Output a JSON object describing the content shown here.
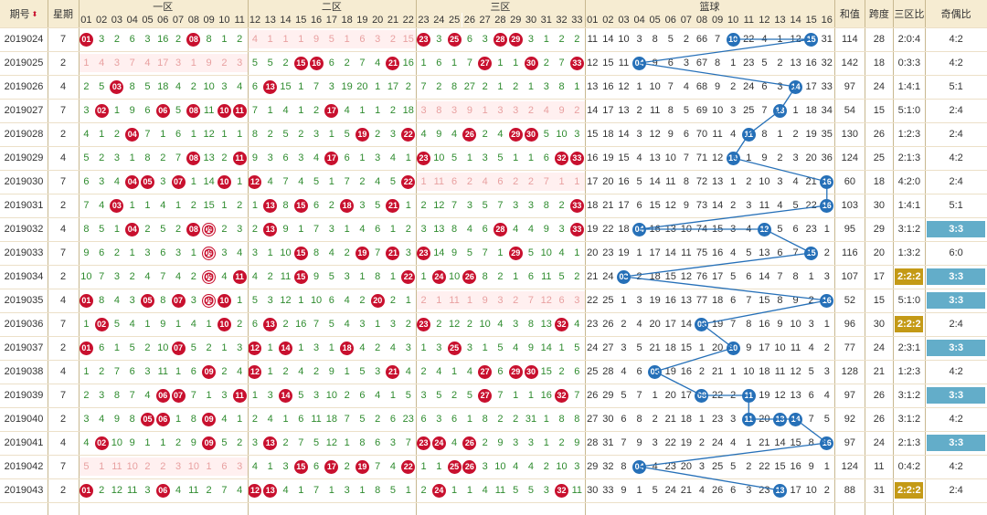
{
  "header": {
    "period_label": "期号",
    "weekday_label": "星期",
    "zone1_label": "一区",
    "zone2_label": "二区",
    "zone3_label": "三区",
    "blue_label": "篮球",
    "sum_label": "和值",
    "span_label": "跨度",
    "ratio_label": "三区比",
    "oddeven_label": "奇偶比",
    "sort_icon": "sort-updown-icon"
  },
  "colors": {
    "red": "#c8102e",
    "blue": "#2670b8",
    "gold": "#c49a16",
    "teal": "#63adc9",
    "header_bg": "#f6ecd2"
  },
  "red_numbers": [
    "01",
    "02",
    "03",
    "04",
    "05",
    "06",
    "07",
    "08",
    "09",
    "10",
    "11",
    "12",
    "13",
    "14",
    "15",
    "16",
    "17",
    "18",
    "19",
    "20",
    "21",
    "22",
    "23",
    "24",
    "25",
    "26",
    "27",
    "28",
    "29",
    "30",
    "31",
    "32",
    "33"
  ],
  "blue_numbers": [
    "01",
    "02",
    "03",
    "04",
    "05",
    "06",
    "07",
    "08",
    "09",
    "10",
    "11",
    "12",
    "13",
    "14",
    "15",
    "16"
  ],
  "rows": [
    {
      "period": "2019024",
      "week": "7",
      "sum": "114",
      "span": "28",
      "ratio": "2:0:4",
      "oe": "4:2",
      "red": [
        "01",
        "3",
        "2",
        "6",
        "3",
        "16",
        "2",
        "08",
        "8",
        "1",
        "2",
        "4",
        "1",
        "1",
        "1",
        "9",
        "5",
        "1",
        "6",
        "3",
        "2",
        "15",
        "23",
        "3",
        "25",
        "6",
        "3",
        "28",
        "29",
        "3",
        "1",
        "2",
        "2"
      ],
      "blue": [
        "11",
        "14",
        "10",
        "3",
        "8",
        "5",
        "2",
        "66",
        "7",
        "10",
        "22",
        "4",
        "1",
        "12",
        "15",
        "31"
      ]
    },
    {
      "period": "2019025",
      "week": "2",
      "sum": "142",
      "span": "18",
      "ratio": "0:3:3",
      "oe": "4:2",
      "red": [
        "1",
        "4",
        "3",
        "7",
        "4",
        "17",
        "3",
        "1",
        "9",
        "2",
        "3",
        "5",
        "5",
        "2",
        "15",
        "16",
        "6",
        "2",
        "7",
        "4",
        "21",
        "16",
        "1",
        "6",
        "1",
        "7",
        "27",
        "1",
        "1",
        "30",
        "2",
        "7",
        "33"
      ],
      "blue": [
        "12",
        "15",
        "11",
        "04",
        "9",
        "6",
        "3",
        "67",
        "8",
        "1",
        "23",
        "5",
        "2",
        "13",
        "16",
        "32"
      ]
    },
    {
      "period": "2019026",
      "week": "4",
      "sum": "97",
      "span": "24",
      "ratio": "1:4:1",
      "oe": "5:1",
      "red": [
        "2",
        "5",
        "03",
        "8",
        "5",
        "18",
        "4",
        "2",
        "10",
        "3",
        "4",
        "6",
        "13",
        "15",
        "1",
        "7",
        "3",
        "19",
        "20",
        "1",
        "17",
        "2",
        "7",
        "2",
        "8",
        "27",
        "2",
        "1",
        "2",
        "1",
        "3",
        "8",
        "1"
      ],
      "blue": [
        "13",
        "16",
        "12",
        "1",
        "10",
        "7",
        "4",
        "68",
        "9",
        "2",
        "24",
        "6",
        "3",
        "14",
        "17",
        "33"
      ]
    },
    {
      "period": "2019027",
      "week": "7",
      "sum": "54",
      "span": "15",
      "ratio": "5:1:0",
      "oe": "2:4",
      "red": [
        "3",
        "02",
        "1",
        "9",
        "6",
        "06",
        "5",
        "08",
        "11",
        "10",
        "11",
        "7",
        "1",
        "4",
        "1",
        "2",
        "17",
        "4",
        "1",
        "1",
        "2",
        "18",
        "3",
        "8",
        "3",
        "9",
        "1",
        "3",
        "3",
        "2",
        "4",
        "9",
        "2"
      ],
      "blue": [
        "14",
        "17",
        "13",
        "2",
        "11",
        "8",
        "5",
        "69",
        "10",
        "3",
        "25",
        "7",
        "13",
        "1",
        "18",
        "34"
      ]
    },
    {
      "period": "2019028",
      "week": "2",
      "sum": "130",
      "span": "26",
      "ratio": "1:2:3",
      "oe": "2:4",
      "red": [
        "4",
        "1",
        "2",
        "04",
        "7",
        "1",
        "6",
        "1",
        "12",
        "1",
        "1",
        "8",
        "2",
        "5",
        "2",
        "3",
        "1",
        "5",
        "19",
        "2",
        "3",
        "22",
        "4",
        "9",
        "4",
        "26",
        "2",
        "4",
        "29",
        "30",
        "5",
        "10",
        "3"
      ],
      "blue": [
        "15",
        "18",
        "14",
        "3",
        "12",
        "9",
        "6",
        "70",
        "11",
        "4",
        "11",
        "8",
        "1",
        "2",
        "19",
        "35"
      ]
    },
    {
      "period": "2019029",
      "week": "4",
      "sum": "124",
      "span": "25",
      "ratio": "2:1:3",
      "oe": "4:2",
      "red": [
        "5",
        "2",
        "3",
        "1",
        "8",
        "2",
        "7",
        "08",
        "13",
        "2",
        "11",
        "9",
        "3",
        "6",
        "3",
        "4",
        "17",
        "6",
        "1",
        "3",
        "4",
        "1",
        "23",
        "10",
        "5",
        "1",
        "3",
        "5",
        "1",
        "1",
        "6",
        "32",
        "33"
      ],
      "blue": [
        "16",
        "19",
        "15",
        "4",
        "13",
        "10",
        "7",
        "71",
        "12",
        "10",
        "1",
        "9",
        "2",
        "3",
        "20",
        "36"
      ]
    },
    {
      "period": "2019030",
      "week": "7",
      "sum": "60",
      "span": "18",
      "ratio": "4:2:0",
      "oe": "2:4",
      "red": [
        "6",
        "3",
        "4",
        "04",
        "05",
        "3",
        "07",
        "1",
        "14",
        "10",
        "1",
        "12",
        "4",
        "7",
        "4",
        "5",
        "1",
        "7",
        "2",
        "4",
        "5",
        "22",
        "1",
        "11",
        "6",
        "2",
        "4",
        "6",
        "2",
        "2",
        "7",
        "1",
        "1"
      ],
      "blue": [
        "17",
        "20",
        "16",
        "5",
        "14",
        "11",
        "8",
        "72",
        "13",
        "1",
        "2",
        "10",
        "3",
        "4",
        "21",
        "16"
      ]
    },
    {
      "period": "2019031",
      "week": "2",
      "sum": "103",
      "span": "30",
      "ratio": "1:4:1",
      "oe": "5:1",
      "red": [
        "7",
        "4",
        "03",
        "1",
        "1",
        "4",
        "1",
        "2",
        "15",
        "1",
        "2",
        "1",
        "13",
        "8",
        "15",
        "6",
        "2",
        "18",
        "3",
        "5",
        "21",
        "1",
        "2",
        "12",
        "7",
        "3",
        "5",
        "7",
        "3",
        "3",
        "8",
        "2",
        "33"
      ],
      "blue": [
        "18",
        "21",
        "17",
        "6",
        "15",
        "12",
        "9",
        "73",
        "14",
        "2",
        "3",
        "11",
        "4",
        "5",
        "22",
        "16"
      ]
    },
    {
      "period": "2019032",
      "week": "4",
      "sum": "95",
      "span": "29",
      "ratio": "3:1:2",
      "oe": "3:3",
      "red": [
        "8",
        "5",
        "1",
        "04",
        "2",
        "5",
        "2",
        "08",
        "09",
        "2",
        "3",
        "2",
        "13",
        "9",
        "1",
        "7",
        "3",
        "1",
        "4",
        "6",
        "1",
        "2",
        "3",
        "13",
        "8",
        "4",
        "6",
        "28",
        "4",
        "4",
        "9",
        "3",
        "33"
      ],
      "blue": [
        "19",
        "22",
        "18",
        "04",
        "16",
        "13",
        "10",
        "74",
        "15",
        "3",
        "4",
        "12",
        "5",
        "6",
        "23",
        "1"
      ]
    },
    {
      "period": "2019033",
      "week": "7",
      "sum": "116",
      "span": "20",
      "ratio": "1:3:2",
      "oe": "6:0",
      "red": [
        "9",
        "6",
        "2",
        "1",
        "3",
        "6",
        "3",
        "1",
        "09",
        "3",
        "4",
        "3",
        "1",
        "10",
        "15",
        "8",
        "4",
        "2",
        "19",
        "7",
        "21",
        "3",
        "23",
        "14",
        "9",
        "5",
        "7",
        "1",
        "29",
        "5",
        "10",
        "4",
        "1"
      ],
      "blue": [
        "20",
        "23",
        "19",
        "1",
        "17",
        "14",
        "11",
        "75",
        "16",
        "4",
        "5",
        "13",
        "6",
        "7",
        "15",
        "2"
      ]
    },
    {
      "period": "2019034",
      "week": "2",
      "sum": "107",
      "span": "17",
      "ratio": "2:2:2",
      "oe": "3:3",
      "red": [
        "10",
        "7",
        "3",
        "2",
        "4",
        "7",
        "4",
        "2",
        "09",
        "4",
        "11",
        "4",
        "2",
        "11",
        "15",
        "9",
        "5",
        "3",
        "1",
        "8",
        "1",
        "22",
        "1",
        "24",
        "10",
        "26",
        "8",
        "2",
        "1",
        "6",
        "11",
        "5",
        "2"
      ],
      "blue": [
        "21",
        "24",
        "03",
        "2",
        "18",
        "15",
        "12",
        "76",
        "17",
        "5",
        "6",
        "14",
        "7",
        "8",
        "1",
        "3"
      ]
    },
    {
      "period": "2019035",
      "week": "4",
      "sum": "52",
      "span": "15",
      "ratio": "5:1:0",
      "oe": "3:3",
      "red": [
        "01",
        "8",
        "4",
        "3",
        "05",
        "8",
        "07",
        "3",
        "09",
        "10",
        "1",
        "5",
        "3",
        "12",
        "1",
        "10",
        "6",
        "4",
        "2",
        "20",
        "2",
        "1",
        "2",
        "1",
        "11",
        "1",
        "9",
        "3",
        "2",
        "7",
        "12",
        "6",
        "3"
      ],
      "blue": [
        "22",
        "25",
        "1",
        "3",
        "19",
        "16",
        "13",
        "77",
        "18",
        "6",
        "7",
        "15",
        "8",
        "9",
        "2",
        "16"
      ]
    },
    {
      "period": "2019036",
      "week": "7",
      "sum": "96",
      "span": "30",
      "ratio": "2:2:2",
      "oe": "2:4",
      "red": [
        "1",
        "02",
        "5",
        "4",
        "1",
        "9",
        "1",
        "4",
        "1",
        "10",
        "2",
        "6",
        "13",
        "2",
        "16",
        "7",
        "5",
        "4",
        "3",
        "1",
        "3",
        "2",
        "23",
        "2",
        "12",
        "2",
        "10",
        "4",
        "3",
        "8",
        "13",
        "32",
        "4"
      ],
      "blue": [
        "23",
        "26",
        "2",
        "4",
        "20",
        "17",
        "14",
        "08",
        "19",
        "7",
        "8",
        "16",
        "9",
        "10",
        "3",
        "1"
      ]
    },
    {
      "period": "2019037",
      "week": "2",
      "sum": "77",
      "span": "24",
      "ratio": "2:3:1",
      "oe": "3:3",
      "red": [
        "01",
        "6",
        "1",
        "5",
        "2",
        "10",
        "07",
        "5",
        "2",
        "1",
        "3",
        "12",
        "1",
        "14",
        "1",
        "3",
        "1",
        "18",
        "4",
        "2",
        "4",
        "3",
        "1",
        "3",
        "25",
        "3",
        "1",
        "5",
        "4",
        "9",
        "14",
        "1",
        "5"
      ],
      "blue": [
        "24",
        "27",
        "3",
        "5",
        "21",
        "18",
        "15",
        "1",
        "20",
        "10",
        "9",
        "17",
        "10",
        "11",
        "4",
        "2"
      ]
    },
    {
      "period": "2019038",
      "week": "4",
      "sum": "128",
      "span": "21",
      "ratio": "1:2:3",
      "oe": "4:2",
      "red": [
        "1",
        "2",
        "7",
        "6",
        "3",
        "11",
        "1",
        "6",
        "09",
        "2",
        "4",
        "12",
        "1",
        "2",
        "4",
        "2",
        "9",
        "1",
        "5",
        "3",
        "21",
        "4",
        "2",
        "4",
        "1",
        "4",
        "27",
        "6",
        "29",
        "30",
        "15",
        "2",
        "6"
      ],
      "blue": [
        "25",
        "28",
        "4",
        "6",
        "05",
        "19",
        "16",
        "2",
        "21",
        "1",
        "10",
        "18",
        "11",
        "12",
        "5",
        "3"
      ]
    },
    {
      "period": "2019039",
      "week": "7",
      "sum": "97",
      "span": "26",
      "ratio": "3:1:2",
      "oe": "3:3",
      "red": [
        "2",
        "3",
        "8",
        "7",
        "4",
        "06",
        "07",
        "7",
        "1",
        "3",
        "11",
        "1",
        "3",
        "14",
        "5",
        "3",
        "10",
        "2",
        "6",
        "4",
        "1",
        "5",
        "3",
        "5",
        "2",
        "5",
        "27",
        "7",
        "1",
        "1",
        "16",
        "32",
        "7"
      ],
      "blue": [
        "26",
        "29",
        "5",
        "7",
        "1",
        "20",
        "17",
        "08",
        "22",
        "2",
        "11",
        "19",
        "12",
        "13",
        "6",
        "4"
      ]
    },
    {
      "period": "2019040",
      "week": "2",
      "sum": "92",
      "span": "26",
      "ratio": "3:1:2",
      "oe": "4:2",
      "red": [
        "3",
        "4",
        "9",
        "8",
        "05",
        "06",
        "1",
        "8",
        "09",
        "4",
        "1",
        "2",
        "4",
        "1",
        "6",
        "11",
        "18",
        "7",
        "5",
        "2",
        "6",
        "23",
        "6",
        "3",
        "6",
        "1",
        "8",
        "2",
        "2",
        "31",
        "1",
        "8",
        "8"
      ],
      "blue": [
        "27",
        "30",
        "6",
        "8",
        "2",
        "21",
        "18",
        "1",
        "23",
        "3",
        "11",
        "20",
        "13",
        "14",
        "7",
        "5"
      ]
    },
    {
      "period": "2019041",
      "week": "4",
      "sum": "97",
      "span": "24",
      "ratio": "2:1:3",
      "oe": "3:3",
      "red": [
        "4",
        "02",
        "10",
        "9",
        "1",
        "1",
        "2",
        "9",
        "09",
        "5",
        "2",
        "3",
        "13",
        "2",
        "7",
        "5",
        "12",
        "1",
        "8",
        "6",
        "3",
        "7",
        "23",
        "24",
        "4",
        "26",
        "2",
        "9",
        "3",
        "3",
        "1",
        "2",
        "9"
      ],
      "blue": [
        "28",
        "31",
        "7",
        "9",
        "3",
        "22",
        "19",
        "2",
        "24",
        "4",
        "1",
        "21",
        "14",
        "15",
        "8",
        "16"
      ]
    },
    {
      "period": "2019042",
      "week": "7",
      "sum": "124",
      "span": "11",
      "ratio": "0:4:2",
      "oe": "4:2",
      "red": [
        "5",
        "1",
        "11",
        "10",
        "2",
        "2",
        "3",
        "10",
        "1",
        "6",
        "3",
        "4",
        "1",
        "3",
        "15",
        "6",
        "17",
        "2",
        "19",
        "7",
        "4",
        "22",
        "1",
        "1",
        "25",
        "26",
        "3",
        "10",
        "4",
        "4",
        "2",
        "10",
        "3"
      ],
      "blue": [
        "29",
        "32",
        "8",
        "04",
        "4",
        "23",
        "20",
        "3",
        "25",
        "5",
        "2",
        "22",
        "15",
        "16",
        "9",
        "1"
      ]
    },
    {
      "period": "2019043",
      "week": "2",
      "sum": "88",
      "span": "31",
      "ratio": "2:2:2",
      "oe": "2:4",
      "red": [
        "01",
        "2",
        "12",
        "11",
        "3",
        "06",
        "4",
        "11",
        "2",
        "7",
        "4",
        "12",
        "13",
        "4",
        "1",
        "7",
        "1",
        "3",
        "1",
        "8",
        "5",
        "1",
        "2",
        "24",
        "1",
        "1",
        "4",
        "11",
        "5",
        "5",
        "3",
        "32",
        "11"
      ],
      "blue": [
        "30",
        "33",
        "9",
        "1",
        "5",
        "24",
        "21",
        "4",
        "26",
        "6",
        "3",
        "23",
        "13",
        "17",
        "10",
        "2"
      ]
    }
  ],
  "dimmed_rows": {
    "zone1": [
      1,
      18
    ],
    "zone2": [
      0
    ],
    "zone3": [
      3,
      6,
      11
    ]
  },
  "double_circle": [
    [
      8,
      8
    ],
    [
      9,
      8
    ],
    [
      10,
      8
    ],
    [
      11,
      8
    ]
  ],
  "ratio_badges": {
    "gold": [
      10,
      12,
      19
    ],
    "teal": [
      8,
      10,
      11,
      13,
      15,
      17
    ]
  }
}
